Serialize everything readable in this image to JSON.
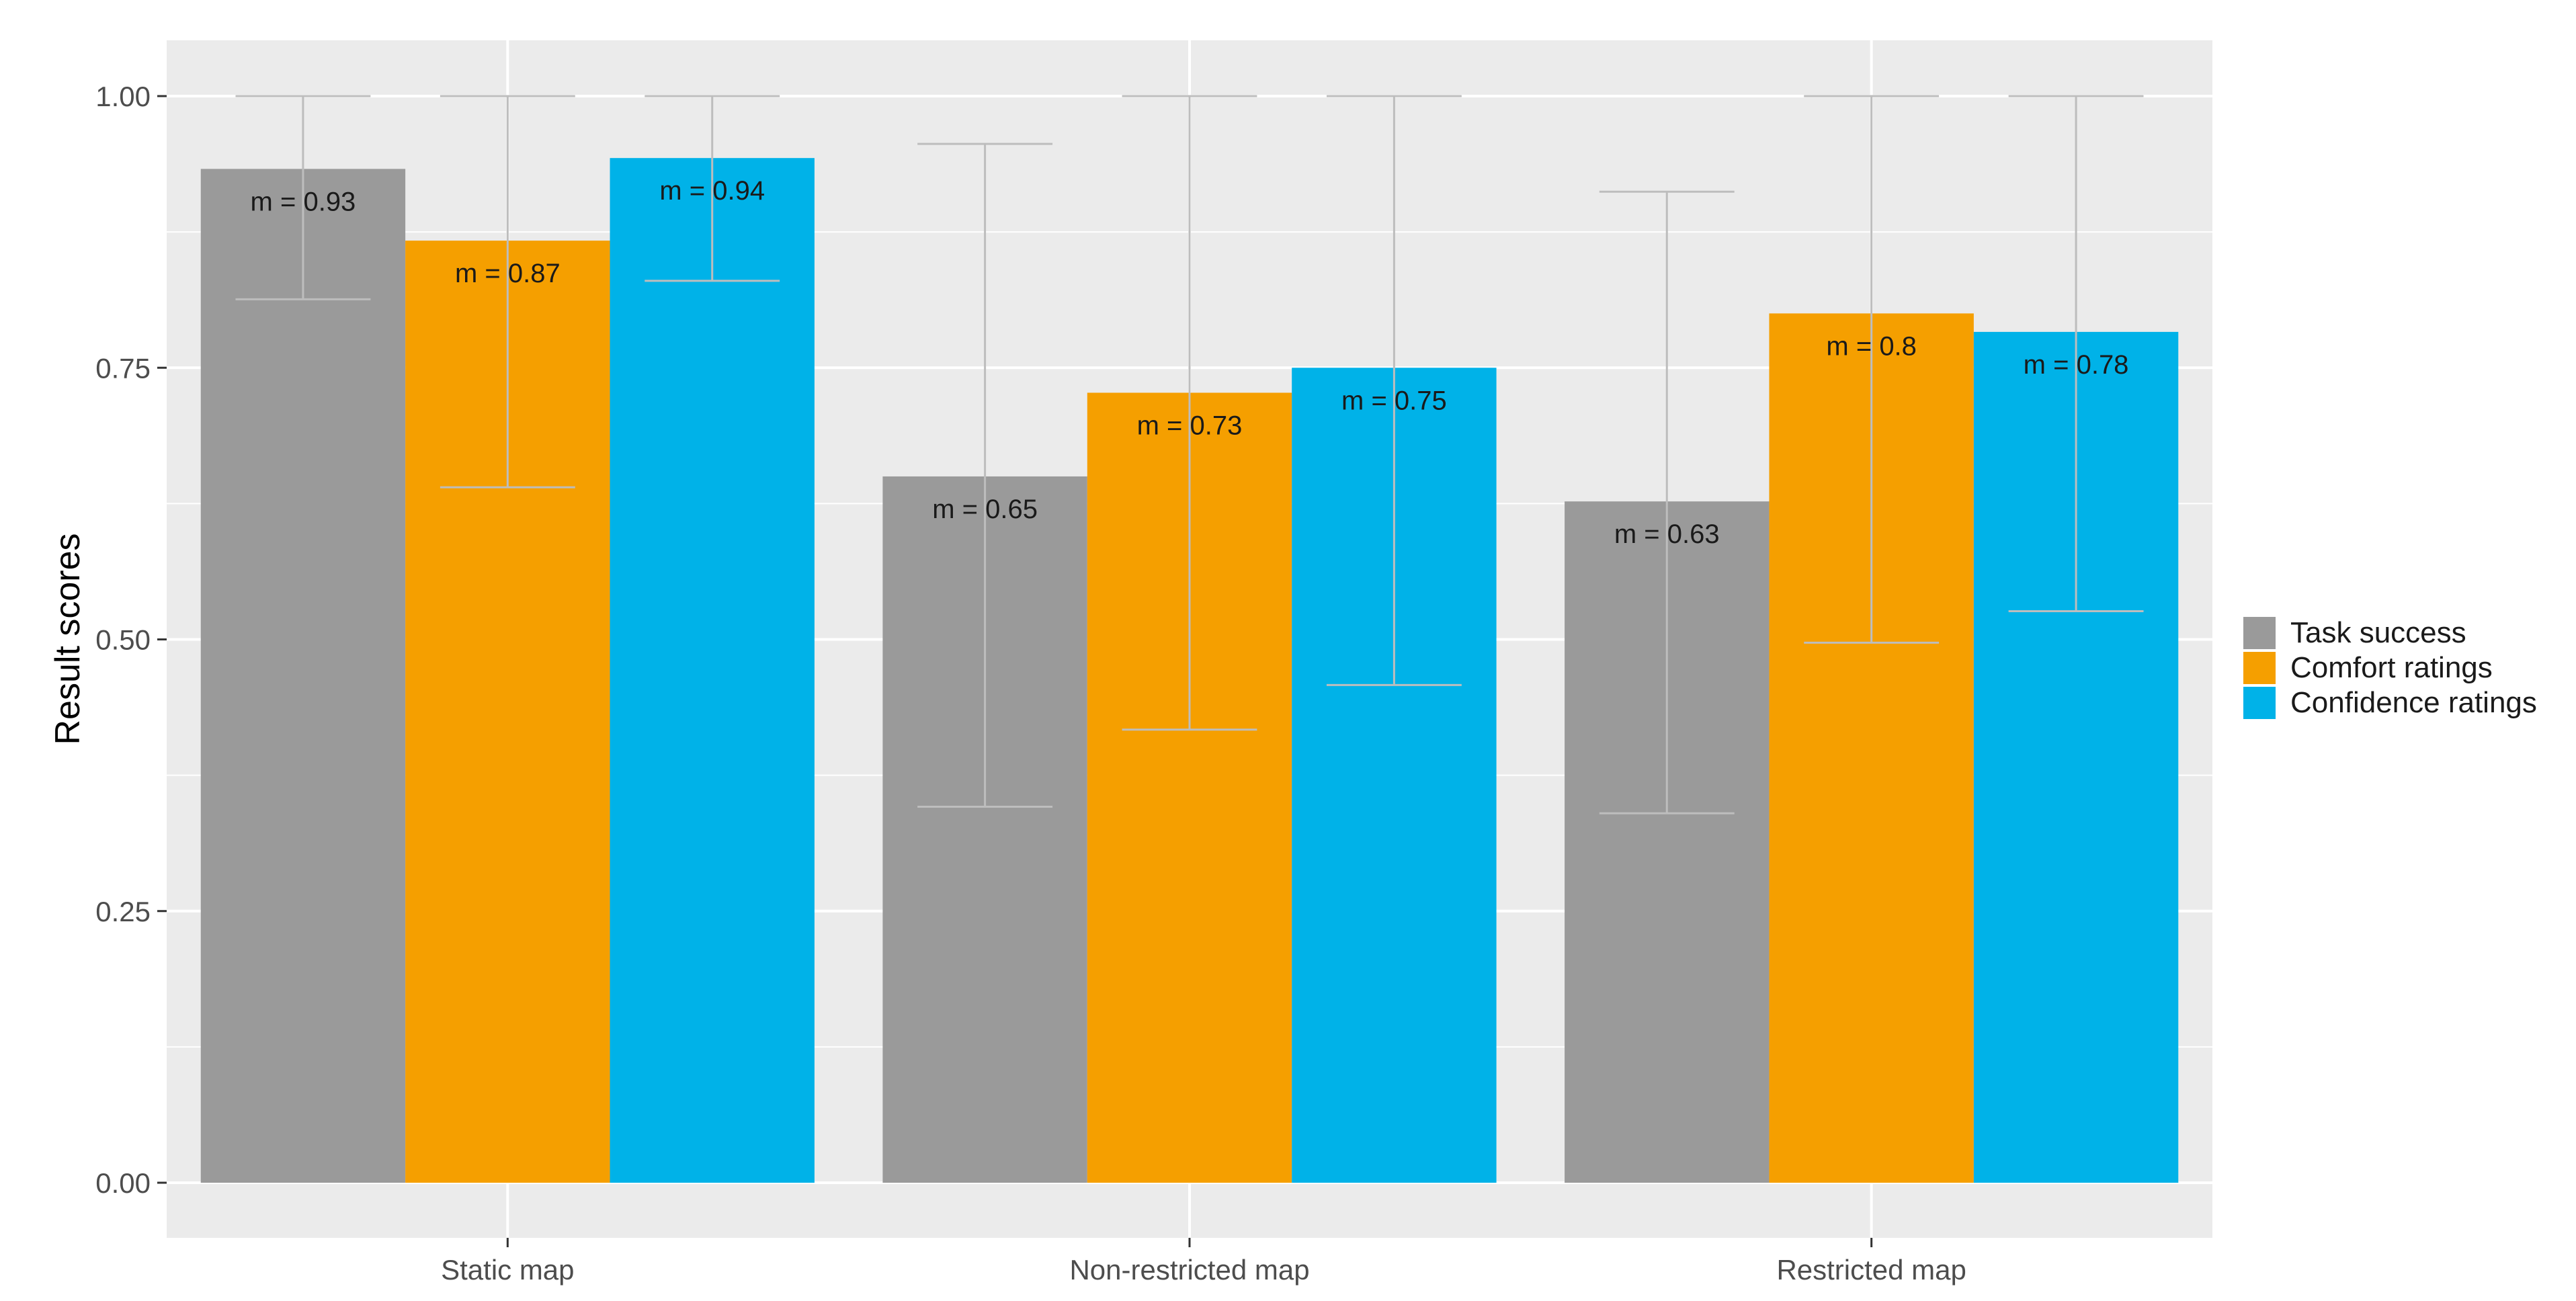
{
  "chart_data": {
    "type": "bar",
    "title": "",
    "xlabel": "",
    "ylabel": "Result scores",
    "ylim": [
      0,
      1.05
    ],
    "yticks": [
      "0.00",
      "0.25",
      "0.50",
      "0.75",
      "1.00"
    ],
    "categories": [
      "Static map",
      "Non-restricted map",
      "Restricted map"
    ],
    "grid": true,
    "legend_position": "right",
    "series": [
      {
        "name": "Task success",
        "color": "#9A9A9A",
        "values": [
          0.933,
          0.65,
          0.627
        ],
        "labels": [
          "m = 0.93",
          "m = 0.65",
          "m = 0.63"
        ],
        "error_low": [
          0.813,
          0.346,
          0.34
        ],
        "error_high": [
          1.0,
          0.956,
          0.912
        ]
      },
      {
        "name": "Comfort ratings",
        "color": "#F59F00",
        "values": [
          0.867,
          0.727,
          0.8
        ],
        "labels": [
          "m = 0.87",
          "m = 0.73",
          "m = 0.8"
        ],
        "error_low": [
          0.64,
          0.417,
          0.497
        ],
        "error_high": [
          1.0,
          1.0,
          1.0
        ]
      },
      {
        "name": "Confidence ratings",
        "color": "#00B2E8",
        "values": [
          0.943,
          0.75,
          0.783
        ],
        "labels": [
          "m = 0.94",
          "m = 0.75",
          "m = 0.78"
        ],
        "error_low": [
          0.83,
          0.458,
          0.526
        ],
        "error_high": [
          1.0,
          1.0,
          1.0
        ]
      }
    ],
    "panel_color": "#EBEBEB",
    "grid_color": "#FFFFFF",
    "errorbar_color": "#BDBDBD"
  }
}
